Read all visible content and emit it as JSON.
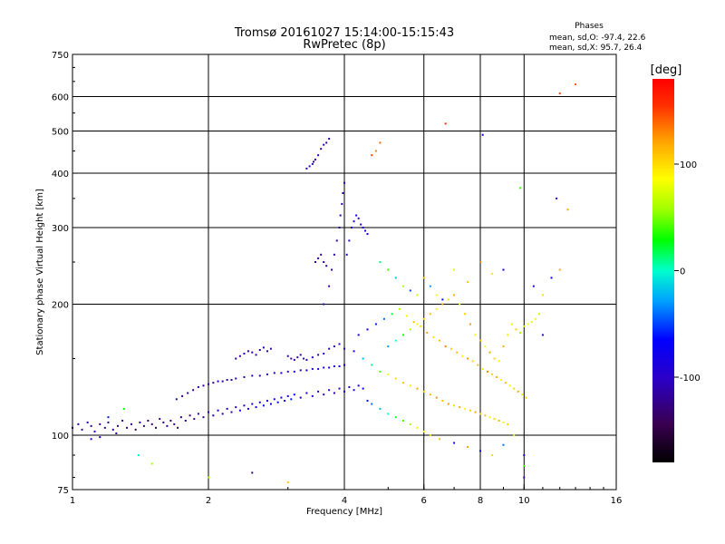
{
  "header": {
    "title_line1": "Tromsø 20161027 15:14:00-15:15:43",
    "title_line2": "RwPretec (8p)"
  },
  "phase_stats": {
    "heading": "Phases",
    "line_o": "mean, sd,O: -97.4, 22.6",
    "line_x": "mean, sd,X:  95.7, 26.4"
  },
  "colorbar": {
    "label": "[deg]",
    "ticks": [
      {
        "value": 100,
        "label": "100"
      },
      {
        "value": 0,
        "label": "0"
      },
      {
        "value": -100,
        "label": "-100"
      }
    ],
    "range": [
      -180,
      180
    ]
  },
  "chart_data": {
    "type": "scatter",
    "title": "Tromsø 20161027 15:14:00-15:15:43",
    "subtitle": "RwPretec (8p)",
    "xlabel": "Frequency [MHz]",
    "ylabel": "Stationary phase Virtual Height [km]",
    "x_scale": "log",
    "y_scale": "log",
    "xlim": [
      1,
      16
    ],
    "ylim": [
      75,
      750
    ],
    "x_ticks": [
      {
        "value": 1,
        "label": "1"
      },
      {
        "value": 2,
        "label": "2"
      },
      {
        "value": 4,
        "label": "4"
      },
      {
        "value": 6,
        "label": "6"
      },
      {
        "value": 8,
        "label": "8"
      },
      {
        "value": 10,
        "label": "10"
      },
      {
        "value": 16,
        "label": "16"
      }
    ],
    "y_ticks": [
      {
        "value": 75,
        "label": "75"
      },
      {
        "value": 100,
        "label": "100"
      },
      {
        "value": 200,
        "label": "200"
      },
      {
        "value": 300,
        "label": "300"
      },
      {
        "value": 400,
        "label": "400"
      },
      {
        "value": 500,
        "label": "500"
      },
      {
        "value": 600,
        "label": "600"
      },
      {
        "value": 750,
        "label": "750"
      }
    ],
    "x_grid": [
      2,
      4,
      6,
      8,
      10
    ],
    "y_grid": [
      100,
      200,
      300,
      400,
      500,
      600
    ],
    "colorbar_label": "[deg]",
    "colorbar_range": [
      -180,
      180
    ],
    "points": [
      [
        1.0,
        104,
        -120
      ],
      [
        1.03,
        106,
        -115
      ],
      [
        1.05,
        103,
        -118
      ],
      [
        1.08,
        107,
        -112
      ],
      [
        1.1,
        105,
        -125
      ],
      [
        1.12,
        102,
        -110
      ],
      [
        1.15,
        106,
        -120
      ],
      [
        1.18,
        104,
        -128
      ],
      [
        1.2,
        107,
        -115
      ],
      [
        1.23,
        103,
        -122
      ],
      [
        1.26,
        105,
        -130
      ],
      [
        1.29,
        108,
        -118
      ],
      [
        1.32,
        104,
        -135
      ],
      [
        1.35,
        106,
        -125
      ],
      [
        1.38,
        103,
        -140
      ],
      [
        1.41,
        107,
        -120
      ],
      [
        1.44,
        105,
        -132
      ],
      [
        1.47,
        108,
        -138
      ],
      [
        1.5,
        106,
        -128
      ],
      [
        1.53,
        104,
        -142
      ],
      [
        1.56,
        109,
        -120
      ],
      [
        1.59,
        107,
        -135
      ],
      [
        1.62,
        105,
        -125
      ],
      [
        1.65,
        108,
        -130
      ],
      [
        1.68,
        106,
        -115
      ],
      [
        1.71,
        104,
        -140
      ],
      [
        1.74,
        110,
        -125
      ],
      [
        1.78,
        108,
        -118
      ],
      [
        1.82,
        111,
        -130
      ],
      [
        1.86,
        109,
        -120
      ],
      [
        1.9,
        112,
        -115
      ],
      [
        1.95,
        110,
        -125
      ],
      [
        2.0,
        113,
        -110
      ],
      [
        2.05,
        111,
        -120
      ],
      [
        2.1,
        114,
        -112
      ],
      [
        2.15,
        112,
        -118
      ],
      [
        2.2,
        115,
        -105
      ],
      [
        2.25,
        113,
        -100
      ],
      [
        2.3,
        116,
        -108
      ],
      [
        2.35,
        114,
        -95
      ],
      [
        2.4,
        117,
        -100
      ],
      [
        2.45,
        115,
        -90
      ],
      [
        2.5,
        118,
        -96
      ],
      [
        2.55,
        116,
        -85
      ],
      [
        2.6,
        119,
        -92
      ],
      [
        2.65,
        117,
        -80
      ],
      [
        2.7,
        120,
        -88
      ],
      [
        2.75,
        118,
        -75
      ],
      [
        2.8,
        121,
        -82
      ],
      [
        2.85,
        119,
        -70
      ],
      [
        2.9,
        122,
        -78
      ],
      [
        2.95,
        120,
        -65
      ],
      [
        3.0,
        123,
        -72
      ],
      [
        3.05,
        121,
        -60
      ],
      [
        3.1,
        124,
        -68
      ],
      [
        3.2,
        122,
        -90
      ],
      [
        3.3,
        125,
        -85
      ],
      [
        3.4,
        123,
        -95
      ],
      [
        3.5,
        126,
        -100
      ],
      [
        3.6,
        124,
        -110
      ],
      [
        3.7,
        127,
        -105
      ],
      [
        3.8,
        125,
        -115
      ],
      [
        3.9,
        128,
        -108
      ],
      [
        4.0,
        126,
        -100
      ],
      [
        4.1,
        129,
        -95
      ],
      [
        4.2,
        127,
        -90
      ],
      [
        4.3,
        130,
        -80
      ],
      [
        4.4,
        128,
        -70
      ],
      [
        1.7,
        121,
        -120
      ],
      [
        1.75,
        123,
        -125
      ],
      [
        1.8,
        125,
        -118
      ],
      [
        1.85,
        127,
        -122
      ],
      [
        1.9,
        129,
        -115
      ],
      [
        1.95,
        130,
        -120
      ],
      [
        2.0,
        131,
        -112
      ],
      [
        2.05,
        132,
        -118
      ],
      [
        2.1,
        133,
        -110
      ],
      [
        2.15,
        133,
        -115
      ],
      [
        2.2,
        134,
        -108
      ],
      [
        2.25,
        134,
        -112
      ],
      [
        2.3,
        135,
        -105
      ],
      [
        2.4,
        136,
        -110
      ],
      [
        2.5,
        137,
        -100
      ],
      [
        2.6,
        137,
        -105
      ],
      [
        2.7,
        138,
        -98
      ],
      [
        2.8,
        139,
        -102
      ],
      [
        2.9,
        139,
        -95
      ],
      [
        3.0,
        140,
        -100
      ],
      [
        3.1,
        140,
        -92
      ],
      [
        3.2,
        141,
        -96
      ],
      [
        3.3,
        141,
        -90
      ],
      [
        3.4,
        142,
        -94
      ],
      [
        3.5,
        142,
        -88
      ],
      [
        3.6,
        143,
        -92
      ],
      [
        3.7,
        143,
        -86
      ],
      [
        3.8,
        144,
        -90
      ],
      [
        3.9,
        144,
        -84
      ],
      [
        4.0,
        145,
        -88
      ],
      [
        2.3,
        150,
        -110
      ],
      [
        2.35,
        152,
        -115
      ],
      [
        2.4,
        154,
        -108
      ],
      [
        2.45,
        156,
        -112
      ],
      [
        2.5,
        155,
        -105
      ],
      [
        2.55,
        153,
        -110
      ],
      [
        2.6,
        157,
        -118
      ],
      [
        2.65,
        159,
        -114
      ],
      [
        2.7,
        156,
        -120
      ],
      [
        2.75,
        158,
        -108
      ],
      [
        3.0,
        152,
        -112
      ],
      [
        3.05,
        150,
        -118
      ],
      [
        3.1,
        149,
        -110
      ],
      [
        3.15,
        151,
        -115
      ],
      [
        3.2,
        153,
        -120
      ],
      [
        3.25,
        150,
        -108
      ],
      [
        3.3,
        149,
        -112
      ],
      [
        3.4,
        151,
        -105
      ],
      [
        3.5,
        153,
        -110
      ],
      [
        3.6,
        154,
        -100
      ],
      [
        3.7,
        158,
        -108
      ],
      [
        3.8,
        160,
        -112
      ],
      [
        3.9,
        162,
        -105
      ],
      [
        4.0,
        158,
        -98
      ],
      [
        4.2,
        156,
        -90
      ],
      [
        4.4,
        150,
        -20
      ],
      [
        4.6,
        145,
        10
      ],
      [
        4.8,
        140,
        40
      ],
      [
        5.0,
        138,
        80
      ],
      [
        5.2,
        135,
        100
      ],
      [
        5.4,
        132,
        110
      ],
      [
        5.6,
        130,
        95
      ],
      [
        5.8,
        128,
        120
      ],
      [
        6.0,
        126,
        105
      ],
      [
        6.2,
        124,
        115
      ],
      [
        6.4,
        122,
        130
      ],
      [
        6.6,
        120,
        110
      ],
      [
        6.8,
        118,
        125
      ],
      [
        7.0,
        117,
        100
      ],
      [
        7.2,
        116,
        118
      ],
      [
        7.4,
        115,
        90
      ],
      [
        7.6,
        114,
        105
      ],
      [
        7.8,
        113,
        120
      ],
      [
        8.0,
        112,
        95
      ],
      [
        8.2,
        111,
        110
      ],
      [
        8.4,
        110,
        85
      ],
      [
        8.6,
        109,
        100
      ],
      [
        8.8,
        108,
        115
      ],
      [
        9.0,
        107,
        90
      ],
      [
        9.2,
        106,
        105
      ],
      [
        4.3,
        170,
        -90
      ],
      [
        4.5,
        175,
        -80
      ],
      [
        4.7,
        180,
        -60
      ],
      [
        4.9,
        185,
        -40
      ],
      [
        5.1,
        190,
        20
      ],
      [
        5.3,
        195,
        60
      ],
      [
        5.5,
        188,
        90
      ],
      [
        5.7,
        182,
        110
      ],
      [
        5.9,
        178,
        100
      ],
      [
        6.1,
        172,
        120
      ],
      [
        6.3,
        168,
        95
      ],
      [
        6.5,
        165,
        110
      ],
      [
        6.7,
        160,
        130
      ],
      [
        6.9,
        158,
        105
      ],
      [
        7.1,
        155,
        115
      ],
      [
        7.3,
        152,
        90
      ],
      [
        7.5,
        150,
        125
      ],
      [
        7.7,
        148,
        100
      ],
      [
        7.9,
        145,
        115
      ],
      [
        8.1,
        142,
        95
      ],
      [
        8.3,
        140,
        130
      ],
      [
        8.5,
        138,
        105
      ],
      [
        8.7,
        136,
        118
      ],
      [
        8.9,
        134,
        92
      ],
      [
        9.1,
        132,
        110
      ],
      [
        9.3,
        130,
        85
      ],
      [
        9.5,
        128,
        100
      ],
      [
        9.7,
        126,
        120
      ],
      [
        9.9,
        124,
        95
      ],
      [
        10.1,
        122,
        108
      ],
      [
        5.0,
        160,
        -30
      ],
      [
        5.2,
        165,
        0
      ],
      [
        5.4,
        170,
        30
      ],
      [
        5.6,
        175,
        60
      ],
      [
        5.8,
        180,
        80
      ],
      [
        6.0,
        185,
        100
      ],
      [
        6.2,
        190,
        110
      ],
      [
        6.4,
        195,
        90
      ],
      [
        6.6,
        200,
        120
      ],
      [
        6.8,
        205,
        100
      ],
      [
        7.0,
        210,
        115
      ],
      [
        7.2,
        200,
        95
      ],
      [
        7.4,
        190,
        105
      ],
      [
        7.6,
        180,
        125
      ],
      [
        7.8,
        170,
        90
      ],
      [
        8.0,
        165,
        110
      ],
      [
        8.2,
        160,
        85
      ],
      [
        8.4,
        155,
        120
      ],
      [
        8.6,
        150,
        100
      ],
      [
        8.8,
        148,
        90
      ],
      [
        9.0,
        160,
        115
      ],
      [
        9.2,
        170,
        95
      ],
      [
        9.4,
        180,
        80
      ],
      [
        9.6,
        175,
        105
      ],
      [
        9.8,
        172,
        60
      ],
      [
        10.0,
        178,
        70
      ],
      [
        10.2,
        180,
        90
      ],
      [
        10.4,
        182,
        75
      ],
      [
        10.6,
        185,
        85
      ],
      [
        10.8,
        190,
        65
      ],
      [
        3.6,
        200,
        -110
      ],
      [
        3.7,
        220,
        -115
      ],
      [
        3.75,
        240,
        -120
      ],
      [
        3.8,
        260,
        -108
      ],
      [
        3.85,
        280,
        -112
      ],
      [
        3.9,
        300,
        -118
      ],
      [
        3.92,
        320,
        -105
      ],
      [
        3.95,
        340,
        -110
      ],
      [
        3.97,
        360,
        -115
      ],
      [
        4.0,
        380,
        -100
      ],
      [
        4.05,
        260,
        -95
      ],
      [
        4.1,
        280,
        -100
      ],
      [
        4.15,
        300,
        -105
      ],
      [
        4.2,
        310,
        -98
      ],
      [
        4.25,
        320,
        -92
      ],
      [
        4.3,
        315,
        -100
      ],
      [
        4.35,
        305,
        -95
      ],
      [
        4.4,
        300,
        -88
      ],
      [
        4.45,
        295,
        -80
      ],
      [
        4.5,
        290,
        -70
      ],
      [
        3.4,
        420,
        -108
      ],
      [
        3.45,
        430,
        -112
      ],
      [
        3.5,
        440,
        -105
      ],
      [
        3.55,
        455,
        -110
      ],
      [
        3.6,
        465,
        -100
      ],
      [
        3.65,
        470,
        -115
      ],
      [
        3.7,
        480,
        -108
      ],
      [
        3.3,
        410,
        -112
      ],
      [
        3.35,
        415,
        -105
      ],
      [
        3.42,
        425,
        -118
      ],
      [
        3.55,
        260,
        -115
      ],
      [
        3.6,
        250,
        -120
      ],
      [
        3.65,
        245,
        -112
      ],
      [
        3.5,
        255,
        -108
      ],
      [
        3.45,
        250,
        -118
      ],
      [
        4.6,
        440,
        150
      ],
      [
        4.7,
        450,
        130
      ],
      [
        4.8,
        470,
        140
      ],
      [
        6.7,
        520,
        160
      ],
      [
        8.1,
        490,
        -95
      ],
      [
        12.0,
        610,
        150
      ],
      [
        13.0,
        640,
        145
      ],
      [
        11.8,
        350,
        -110
      ],
      [
        12.5,
        330,
        120
      ],
      [
        9.8,
        370,
        40
      ],
      [
        4.8,
        250,
        10
      ],
      [
        5.0,
        240,
        40
      ],
      [
        5.2,
        230,
        -20
      ],
      [
        5.4,
        220,
        60
      ],
      [
        5.6,
        215,
        -50
      ],
      [
        5.8,
        210,
        70
      ],
      [
        6.0,
        230,
        110
      ],
      [
        6.2,
        220,
        -30
      ],
      [
        6.4,
        210,
        90
      ],
      [
        6.6,
        205,
        -60
      ],
      [
        7.0,
        240,
        80
      ],
      [
        7.5,
        225,
        105
      ],
      [
        8.0,
        250,
        130
      ],
      [
        8.5,
        235,
        95
      ],
      [
        9.0,
        240,
        -70
      ],
      [
        10.5,
        220,
        -90
      ],
      [
        11.0,
        210,
        100
      ],
      [
        11.5,
        230,
        -80
      ],
      [
        12.0,
        240,
        120
      ],
      [
        11.0,
        170,
        -100
      ],
      [
        4.5,
        120,
        -60
      ],
      [
        4.6,
        118,
        -40
      ],
      [
        4.8,
        115,
        -20
      ],
      [
        5.0,
        112,
        0
      ],
      [
        5.2,
        110,
        20
      ],
      [
        5.4,
        108,
        40
      ],
      [
        5.6,
        106,
        60
      ],
      [
        5.8,
        104,
        80
      ],
      [
        6.0,
        102,
        90
      ],
      [
        6.2,
        100,
        100
      ],
      [
        6.5,
        98,
        110
      ],
      [
        7.0,
        96,
        -80
      ],
      [
        7.5,
        94,
        120
      ],
      [
        8.0,
        92,
        -60
      ],
      [
        8.5,
        90,
        100
      ],
      [
        9.0,
        95,
        -40
      ],
      [
        9.5,
        100,
        80
      ],
      [
        10.0,
        90,
        -100
      ],
      [
        10.0,
        80,
        -110
      ],
      [
        10.0,
        85,
        40
      ],
      [
        1.4,
        90,
        -5
      ],
      [
        1.5,
        86,
        60
      ],
      [
        2.0,
        80,
        60
      ],
      [
        2.5,
        82,
        -130
      ],
      [
        3.0,
        78,
        110
      ],
      [
        1.2,
        110,
        -60
      ],
      [
        1.3,
        115,
        30
      ],
      [
        1.1,
        98,
        -100
      ],
      [
        1.15,
        99,
        -105
      ],
      [
        1.25,
        101,
        -110
      ]
    ]
  }
}
